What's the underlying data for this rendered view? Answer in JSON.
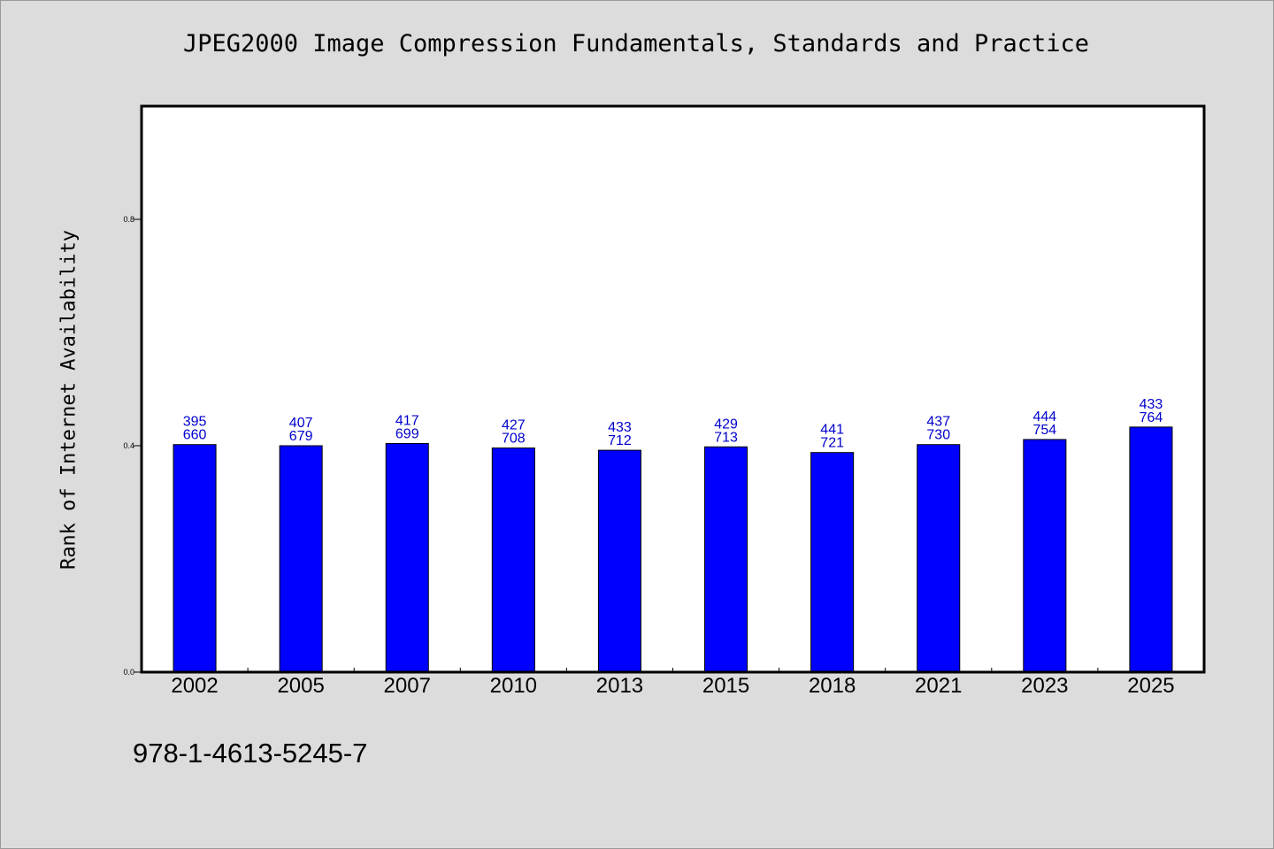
{
  "chart_data": {
    "type": "bar",
    "title": "JPEG2000 Image Compression Fundamentals, Standards and Practice",
    "ylabel": "Rank of Internet Availability",
    "xlabel": "",
    "categories": [
      "2002",
      "2005",
      "2007",
      "2010",
      "2013",
      "2015",
      "2018",
      "2021",
      "2023",
      "2025"
    ],
    "values": [
      0.402,
      0.4,
      0.404,
      0.396,
      0.392,
      0.398,
      0.388,
      0.402,
      0.411,
      0.433
    ],
    "bar_labels_top": [
      "395",
      "407",
      "417",
      "427",
      "433",
      "429",
      "441",
      "437",
      "444",
      "433"
    ],
    "bar_labels_bottom": [
      "660",
      "679",
      "699",
      "708",
      "712",
      "713",
      "721",
      "730",
      "754",
      "764"
    ],
    "ylim": [
      0,
      1.0
    ],
    "yticks": [
      0.0,
      0.4,
      0.8
    ],
    "ytick_labels": [
      "0.0",
      "0.4",
      "0.8"
    ],
    "grid": false,
    "colors": {
      "bar": "#0000ff",
      "bar_label": "#0000cc",
      "plot_bg": "#ffffff",
      "page_bg": "#dcdcdc"
    }
  },
  "footer": {
    "isbn": "978-1-4613-5245-7"
  }
}
